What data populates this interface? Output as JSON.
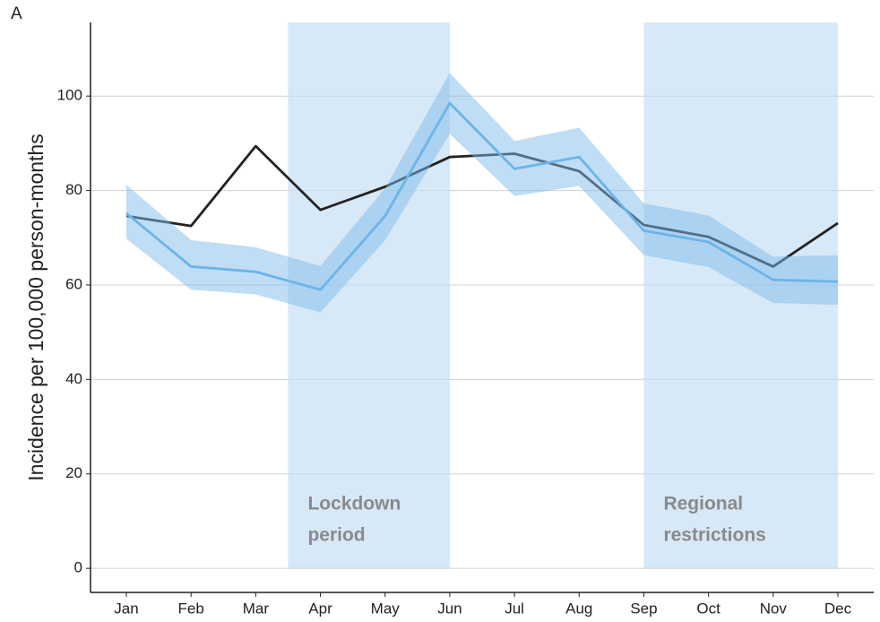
{
  "chart_data": {
    "type": "line",
    "panel_label": "A",
    "y_label": "Incidence per 100,000 person-months",
    "categories": [
      "Jan",
      "Feb",
      "Mar",
      "Apr",
      "May",
      "Jun",
      "Jul",
      "Aug",
      "Sep",
      "Oct",
      "Nov",
      "Dec"
    ],
    "series": [
      {
        "color": "#222222",
        "values": [
          74.6,
          72.5,
          89.4,
          75.9,
          80.8,
          87.1,
          87.8,
          84.1,
          72.7,
          70.2,
          63.9,
          73.1
        ]
      },
      {
        "color": "#6cb4e8",
        "band_color": "#7fbbec",
        "values": [
          75.2,
          63.9,
          62.8,
          59.0,
          74.6,
          98.5,
          84.6,
          87.1,
          71.5,
          69.1,
          61.1,
          60.7
        ],
        "lower": [
          69.8,
          59.0,
          58.0,
          54.2,
          69.5,
          92.0,
          78.8,
          81.0,
          66.3,
          63.8,
          56.2,
          55.8
        ],
        "upper": [
          81.2,
          69.5,
          68.0,
          64.0,
          80.5,
          104.9,
          90.5,
          93.3,
          77.3,
          74.7,
          66.0,
          66.3
        ]
      }
    ],
    "shaded_periods": [
      {
        "label": [
          "Lockdown",
          "period"
        ],
        "x_start": 2.5,
        "x_end": 5
      },
      {
        "label": [
          "Regional",
          "restrictions"
        ],
        "x_start": 8,
        "x_end": 11
      }
    ],
    "shade_color": "#c2dcf3",
    "ylim": [
      -5.1,
      115.6
    ],
    "yticks": [
      0,
      20,
      40,
      60,
      80,
      100
    ],
    "grid": true
  }
}
